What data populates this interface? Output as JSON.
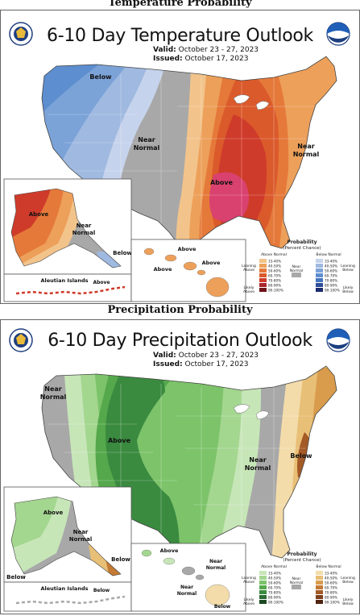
{
  "temperature": {
    "caption": "Temperature Probability",
    "title": "6-10 Day Temperature Outlook",
    "valid_label": "Valid:",
    "valid_value": "October 23 - 27, 2023",
    "issued_label": "Issued:",
    "issued_value": "October 17, 2023",
    "regions": {
      "below": "Below",
      "near_normal_line1": "Near",
      "near_normal_line2": "Normal",
      "near_normal_east_line1": "Near",
      "near_normal_east_line2": "Normal",
      "above": "Above",
      "ak_above": "Above",
      "ak_near_line1": "Near",
      "ak_near_line2": "Normal",
      "ak_below": "Below",
      "aleutian": "Aleutian Islands",
      "aleutian_above": "Above",
      "hi_above_1": "Above",
      "hi_above_2": "Above",
      "hi_above_3": "Above"
    },
    "legend": {
      "title_line1": "Probability",
      "title_line2": "(Percent Chance)",
      "above_header": "Above Normal",
      "below_header": "Below Normal",
      "near_label_line1": "Near",
      "near_label_line2": "Normal",
      "leaning_above_line1": "Leaning",
      "leaning_above_line2": "Above",
      "likely_above_line1": "Likely",
      "likely_above_line2": "Above",
      "leaning_below_line1": "Leaning",
      "leaning_below_line2": "Below",
      "likely_below_line1": "Likely",
      "likely_below_line2": "Below",
      "ranges": [
        "33-40%",
        "40-50%",
        "50-60%",
        "60-70%",
        "70-80%",
        "80-90%",
        "90-100%"
      ],
      "above_colors": [
        "#f2c48b",
        "#eda05a",
        "#e5793a",
        "#db5a2b",
        "#cf3b2a",
        "#a8262b",
        "#6e1419"
      ],
      "below_colors": [
        "#c6d3ec",
        "#9fb9e0",
        "#7ba3d8",
        "#5d8ecf",
        "#4474bd",
        "#2d4e9a",
        "#1c2b6e"
      ],
      "near_color": "#a8a8a8"
    }
  },
  "precipitation": {
    "caption": "Precipitation Probability",
    "title": "6-10 Day Precipitation Outlook",
    "valid_label": "Valid:",
    "valid_value": "October 23 - 27, 2023",
    "issued_label": "Issued:",
    "issued_value": "October 17, 2023",
    "regions": {
      "near_normal_nw_line1": "Near",
      "near_normal_nw_line2": "Normal",
      "above": "Above",
      "near_normal_east_line1": "Near",
      "near_normal_east_line2": "Normal",
      "below": "Below",
      "ak_above": "Above",
      "ak_near_line1": "Near",
      "ak_near_line2": "Normal",
      "ak_below_1": "Below",
      "ak_below_2": "Below",
      "aleutian": "Aleutian Islands",
      "aleutian_below": "Below",
      "hi_above": "Above",
      "hi_near_line1": "Near",
      "hi_near_line2": "Normal",
      "hi_near2_line1": "Near",
      "hi_near2_line2": "Normal",
      "hi_below": "Below"
    },
    "legend": {
      "title_line1": "Probability",
      "title_line2": "(Percent Chance)",
      "above_header": "Above Normal",
      "below_header": "Below Normal",
      "near_label_line1": "Near",
      "near_label_line2": "Normal",
      "leaning_above_line1": "Leaning",
      "leaning_above_line2": "Above",
      "likely_above_line1": "Likely",
      "likely_above_line2": "Above",
      "leaning_below_line1": "Leaning",
      "leaning_below_line2": "Below",
      "likely_below_line1": "Likely",
      "likely_below_line2": "Below",
      "ranges": [
        "33-40%",
        "40-50%",
        "50-60%",
        "60-70%",
        "70-80%",
        "80-90%",
        "90-100%"
      ],
      "above_colors": [
        "#c7e6b8",
        "#a3d68f",
        "#7cc36a",
        "#55a84b",
        "#3a8a3f",
        "#2b6b34",
        "#1b4822"
      ],
      "below_colors": [
        "#f3dcaa",
        "#e8bf76",
        "#d99c4c",
        "#c47a33",
        "#a45a26",
        "#7e3f1d",
        "#4f2411"
      ],
      "near_color": "#a8a8a8"
    }
  }
}
